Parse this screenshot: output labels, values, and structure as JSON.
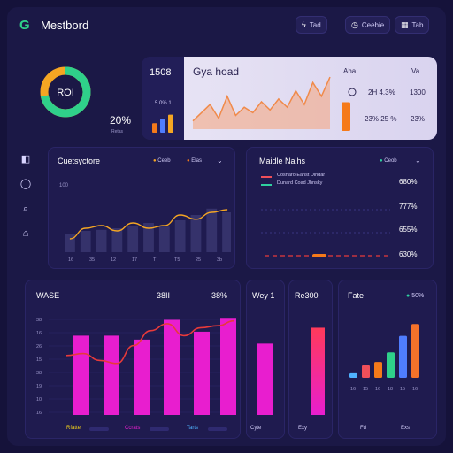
{
  "header": {
    "logo": "G",
    "title": "Mestbord",
    "buttons": [
      {
        "icon": "bolt-icon",
        "glyph": "ϟ",
        "label": "Tad"
      },
      {
        "icon": "clock-icon",
        "glyph": "◷",
        "label": "Ceebie"
      },
      {
        "icon": "grid-icon",
        "glyph": "▦",
        "label": "Tab"
      }
    ]
  },
  "summary": {
    "donut_label": "ROI",
    "donut_value": 0.72,
    "percent": "20%",
    "percent_sub": "Retas"
  },
  "hero": {
    "left_value": "1508",
    "left_small": "5.0% 1",
    "title": "Gya hoad",
    "col1_label": "Aha",
    "col2_label": "Va",
    "row1_a": "2H 4.3%",
    "row1_b": "1300",
    "row2_a": "23% 25 %",
    "row2_b": "23%",
    "mini_bars": [
      0.45,
      0.65,
      0.85
    ],
    "line_values": [
      0.15,
      0.3,
      0.45,
      0.2,
      0.6,
      0.25,
      0.4,
      0.3,
      0.5,
      0.35,
      0.55,
      0.4,
      0.7,
      0.45,
      0.85,
      0.6,
      0.95
    ],
    "accent_bar": 0.65,
    "colors": {
      "line": "#f08a4a",
      "fill": "#f6a47a",
      "bar": "#f57a1a"
    }
  },
  "sidebar": {
    "items": [
      {
        "icon": "folder-icon",
        "glyph": "◧"
      },
      {
        "icon": "chat-icon",
        "glyph": "◯"
      },
      {
        "icon": "search-icon",
        "glyph": "⌕"
      },
      {
        "icon": "home-icon",
        "glyph": "⌂"
      }
    ]
  },
  "overview": {
    "title": "Cuetsyctore",
    "legend": [
      {
        "label": "Ceeb",
        "color": "#f5a623"
      },
      {
        "label": "Elas",
        "color": "#f57a1a"
      }
    ],
    "y_label": "100",
    "x_labels": [
      "16",
      "35",
      "12",
      "17",
      "T",
      "T5",
      "25",
      "3b"
    ],
    "bars": [
      0.35,
      0.4,
      0.42,
      0.45,
      0.5,
      0.55,
      0.48,
      0.6,
      0.7,
      0.82,
      0.75
    ],
    "line": [
      0.25,
      0.45,
      0.5,
      0.4,
      0.55,
      0.45,
      0.5,
      0.7,
      0.62,
      0.75,
      0.8
    ]
  },
  "metrics": {
    "title": "Maidle Nalhs",
    "legend": "Ceob",
    "rows": [
      {
        "label": "Cosnaro Eanst Dindar",
        "value": "680%",
        "color": "#ef4f5a"
      },
      {
        "label": "Dunard Coad Jhnsky",
        "value": "777%",
        "color": "#2fd0a0"
      },
      {
        "label": "",
        "value": "655%",
        "color": ""
      },
      {
        "label": "",
        "value": "630%",
        "color": "#e83a3a"
      }
    ]
  },
  "bottom": {
    "title": "WASE",
    "mid_value": "38II",
    "right_value": "38%",
    "y_labels": [
      "38",
      "16",
      "26",
      "15",
      "38",
      "19",
      "10",
      "16"
    ],
    "bars": [
      0.8,
      0.8,
      0.76,
      0.96,
      0.84,
      0.98
    ],
    "line": [
      0.6,
      0.62,
      0.55,
      0.52,
      0.7,
      0.85,
      0.92,
      0.8,
      0.88,
      0.9,
      0.95
    ],
    "legend": [
      "Rfatte",
      "Ccrats",
      "Tarts"
    ],
    "col2_title": "Wey 1",
    "col2_bar": 0.72,
    "col2_legend": "Cyte",
    "col3_title": "Re300",
    "col3_bar": 0.88,
    "col3_legend": "Exy",
    "col4_title": "Fate",
    "col4_legend_label": "50%",
    "col4_bars": [
      0.08,
      0.22,
      0.28,
      0.45,
      0.74,
      0.95
    ],
    "col4_x": [
      "16",
      "15",
      "16",
      "18",
      "15",
      "16"
    ],
    "col4_footer": [
      "Fd",
      "Exs"
    ]
  },
  "colors": {
    "background": "#15123a",
    "panel": "#1f1b4f",
    "magenta": "#e81ecf",
    "line_red": "#e83a3a",
    "accent_green": "#2fd08a",
    "orange": "#f57a1a"
  }
}
